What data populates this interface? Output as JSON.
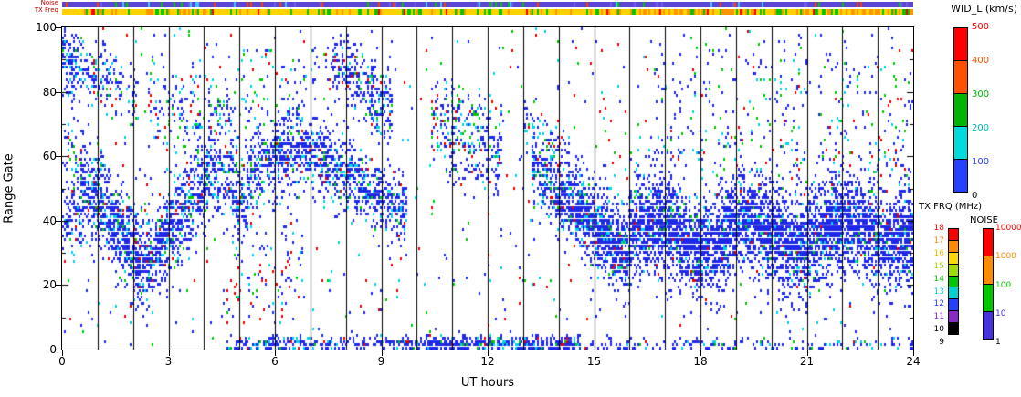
{
  "chart_data": {
    "type": "heatmap",
    "title": "",
    "xlabel": "UT hours",
    "ylabel": "Range Gate",
    "xlim": [
      0,
      24
    ],
    "ylim": [
      0,
      100
    ],
    "xticks": [
      0,
      3,
      6,
      9,
      12,
      15,
      18,
      21,
      24
    ],
    "yticks": [
      0,
      20,
      40,
      60,
      80,
      100
    ],
    "grid": "vertical black line every 1 hour",
    "colorbars": [
      {
        "title": "WID_L (km/s)",
        "labels": [
          "500",
          "400",
          "300",
          "200",
          "100",
          "0"
        ],
        "label_colors": [
          "#ff0000",
          "#ff5000",
          "#00b400",
          "#00b4b4",
          "#2341ff",
          "#000000"
        ],
        "segments": [
          "#ff0000",
          "#ff5000",
          "#00b400",
          "#00dcdc",
          "#2341ff"
        ]
      },
      {
        "title": "TX FRQ (MHz)",
        "labels": [
          "18",
          "17",
          "16",
          "15",
          "14",
          "13",
          "12",
          "11",
          "10",
          "9"
        ],
        "label_colors": [
          "#ff0000",
          "#ff8c00",
          "#e6c000",
          "#a0dc00",
          "#00c800",
          "#00d2d2",
          "#2341ff",
          "#8c28c8",
          "#000000",
          "#000000"
        ],
        "segments": [
          "#ff0000",
          "#ff8c00",
          "#ffd700",
          "#a0dc00",
          "#00c800",
          "#00d2d2",
          "#2341ff",
          "#8c28c8",
          "#000000"
        ]
      },
      {
        "title": "NOISE",
        "labels": [
          "10000",
          "1000",
          "100",
          "10",
          "1"
        ],
        "label_colors": [
          "#ff0000",
          "#ff8c00",
          "#00c800",
          "#4632dc",
          "#000000"
        ],
        "segments": [
          "#ff0000",
          "#ff8c00",
          "#00c800",
          "#4632dc"
        ]
      }
    ],
    "strips": [
      {
        "label": "Noise",
        "regimes": [
          {
            "x0": 0,
            "x1": 24,
            "palette": [
              [
                "#5a46d2",
                0.84
              ],
              [
                "#6e5ae6",
                0.06
              ],
              [
                "#00c800",
                0.04
              ],
              [
                "#3cc8ff",
                0.03
              ],
              [
                "#ff3c00",
                0.03
              ]
            ]
          }
        ]
      },
      {
        "label": "TX Freq",
        "regimes": [
          {
            "x0": 0,
            "x1": 16,
            "palette": [
              [
                "#ffd200",
                0.72
              ],
              [
                "#ff9600",
                0.1
              ],
              [
                "#00c800",
                0.14
              ],
              [
                "#ff0000",
                0.04
              ]
            ]
          },
          {
            "x0": 16,
            "x1": 24,
            "palette": [
              [
                "#ff9600",
                0.42
              ],
              [
                "#ffd200",
                0.34
              ],
              [
                "#00c800",
                0.2
              ],
              [
                "#ff0000",
                0.04
              ]
            ]
          }
        ]
      }
    ],
    "point_colors": {
      "blue": "#1e28e6",
      "cyan": "#00d2e6",
      "green": "#00c800",
      "red": "#e60000"
    },
    "palettes": {
      "dense": [
        [
          "blue",
          0.78
        ],
        [
          "cyan",
          0.12
        ],
        [
          "green",
          0.06
        ],
        [
          "red",
          0.04
        ]
      ],
      "dense2": [
        [
          "blue",
          0.88
        ],
        [
          "cyan",
          0.07
        ],
        [
          "green",
          0.03
        ],
        [
          "red",
          0.02
        ]
      ],
      "mixed": [
        [
          "blue",
          0.55
        ],
        [
          "cyan",
          0.2
        ],
        [
          "green",
          0.15
        ],
        [
          "red",
          0.1
        ]
      ],
      "redmix": [
        [
          "blue",
          0.45
        ],
        [
          "red",
          0.3
        ],
        [
          "cyan",
          0.15
        ],
        [
          "green",
          0.1
        ]
      ],
      "bg": [
        [
          "blue",
          0.42
        ],
        [
          "red",
          0.22
        ],
        [
          "cyan",
          0.2
        ],
        [
          "green",
          0.16
        ]
      ]
    },
    "background_scatter": {
      "p": 0.018,
      "pal": "bg"
    },
    "features_note": "Approximate backscatter band structures (UT hours vs range gate) estimated from the plot.",
    "features": [
      {
        "x0": 0.0,
        "x1": 0.5,
        "y0": 91,
        "y1": 87,
        "hw": 6,
        "d": 0.6,
        "pal": "dense"
      },
      {
        "x0": 0.5,
        "x1": 1.1,
        "y0": 88,
        "y1": 83,
        "hw": 5,
        "d": 0.45,
        "pal": "mixed"
      },
      {
        "x0": 1.1,
        "x1": 2.1,
        "y0": 85,
        "y1": 77,
        "hw": 5,
        "d": 0.3,
        "pal": "mixed"
      },
      {
        "x0": 0.0,
        "x1": 0.6,
        "y0": 40,
        "y1": 44,
        "hw": 6,
        "d": 0.5,
        "pal": "dense"
      },
      {
        "x0": 0.0,
        "x1": 1.1,
        "y0": 62,
        "y1": 57,
        "hw": 5,
        "d": 0.26,
        "pal": "mixed"
      },
      {
        "x0": 0.5,
        "x1": 1.4,
        "y0": 52,
        "y1": 40,
        "hw": 8,
        "d": 0.7,
        "pal": "dense"
      },
      {
        "x0": 1.4,
        "x1": 2.3,
        "y0": 40,
        "y1": 25,
        "hw": 8,
        "d": 0.75,
        "pal": "dense"
      },
      {
        "x0": 2.3,
        "x1": 3.1,
        "y0": 26,
        "y1": 38,
        "hw": 8,
        "d": 0.7,
        "pal": "dense"
      },
      {
        "x0": 3.1,
        "x1": 4.2,
        "y0": 38,
        "y1": 58,
        "hw": 9,
        "d": 0.62,
        "pal": "dense"
      },
      {
        "x0": 2.4,
        "x1": 4.9,
        "y0": 76,
        "y1": 70,
        "hw": 9,
        "d": 0.2,
        "pal": "mixed"
      },
      {
        "x0": 4.2,
        "x1": 5.3,
        "y0": 57,
        "y1": 48,
        "hw": 8,
        "d": 0.5,
        "pal": "dense"
      },
      {
        "x0": 5.3,
        "x1": 6.6,
        "y0": 54,
        "y1": 65,
        "hw": 8,
        "d": 0.6,
        "pal": "dense"
      },
      {
        "x0": 6.6,
        "x1": 8.2,
        "y0": 64,
        "y1": 53,
        "hw": 7,
        "d": 0.6,
        "pal": "dense"
      },
      {
        "x0": 8.2,
        "x1": 9.7,
        "y0": 53,
        "y1": 42,
        "hw": 6,
        "d": 0.62,
        "pal": "dense"
      },
      {
        "x0": 7.6,
        "x1": 9.3,
        "y0": 89,
        "y1": 75,
        "hw": 6,
        "d": 0.55,
        "pal": "dense"
      },
      {
        "x0": 5.0,
        "x1": 7.6,
        "y0": 82,
        "y1": 79,
        "hw": 9,
        "d": 0.1,
        "pal": "mixed"
      },
      {
        "x0": 4.6,
        "x1": 6.7,
        "y0": 18,
        "y1": 20,
        "hw": 14,
        "d": 0.09,
        "pal": "redmix"
      },
      {
        "x0": 10.4,
        "x1": 12.4,
        "y0": 72,
        "y1": 63,
        "hw": 7,
        "d": 0.35,
        "pal": "mixed"
      },
      {
        "x0": 10.8,
        "x1": 12.3,
        "y0": 58,
        "y1": 53,
        "hw": 4,
        "d": 0.3,
        "pal": "dense"
      },
      {
        "x0": 13.0,
        "x1": 14.3,
        "y0": 70,
        "y1": 60,
        "hw": 5,
        "d": 0.35,
        "pal": "mixed"
      },
      {
        "x0": 13.2,
        "x1": 14.5,
        "y0": 57,
        "y1": 43,
        "hw": 7,
        "d": 0.68,
        "pal": "dense"
      },
      {
        "x0": 14.5,
        "x1": 16.0,
        "y0": 43,
        "y1": 28,
        "hw": 8,
        "d": 0.85,
        "pal": "dense"
      },
      {
        "x0": 16.0,
        "x1": 24.0,
        "y0": 35,
        "y1": 37,
        "hw": 9,
        "d": 0.82,
        "pal": "dense2",
        "wave": {
          "amp": 4,
          "period": 2.7
        }
      },
      {
        "x0": 16.0,
        "x1": 24.0,
        "y0": 55,
        "y1": 58,
        "hw": 13,
        "d": 0.1,
        "pal": "mixed"
      },
      {
        "x0": 16.5,
        "x1": 24.0,
        "y0": 82,
        "y1": 80,
        "hw": 11,
        "d": 0.07,
        "pal": "mixed"
      },
      {
        "x0": 4.6,
        "x1": 9.6,
        "y0": 1,
        "y1": 1,
        "hw": 1.6,
        "d": 0.55,
        "pal": "dense"
      },
      {
        "x0": 9.6,
        "x1": 14.6,
        "y0": 1,
        "y1": 1,
        "hw": 1.6,
        "d": 0.8,
        "pal": "dense"
      },
      {
        "x0": 14.6,
        "x1": 24.0,
        "y0": 1,
        "y1": 1,
        "hw": 1.3,
        "d": 0.28,
        "pal": "dense"
      }
    ]
  }
}
